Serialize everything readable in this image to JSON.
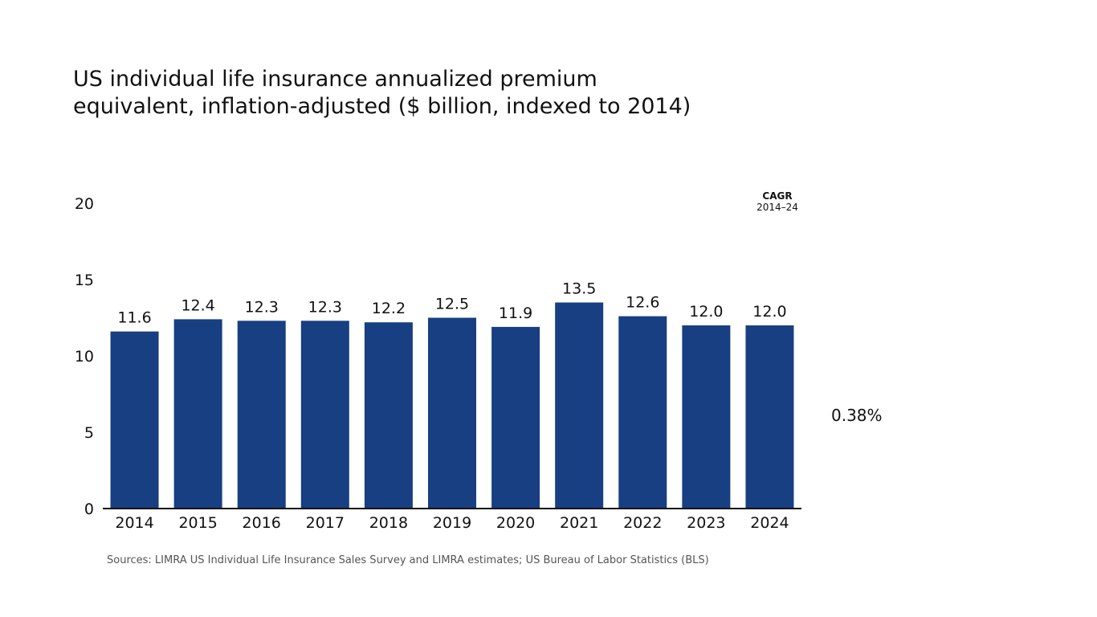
{
  "chart_data": {
    "type": "bar",
    "title_lines": [
      "US individual life insurance annualized premium",
      "equivalent, inflation-adjusted ($ billion, indexed to 2014)"
    ],
    "categories": [
      "2014",
      "2015",
      "2016",
      "2017",
      "2018",
      "2019",
      "2020",
      "2021",
      "2022",
      "2023",
      "2024"
    ],
    "values": [
      11.6,
      12.4,
      12.3,
      12.3,
      12.2,
      12.5,
      11.9,
      13.5,
      12.6,
      12.0,
      12.0
    ],
    "value_labels": [
      "11.6",
      "12.4",
      "12.3",
      "12.3",
      "12.2",
      "12.5",
      "11.9",
      "13.5",
      "12.6",
      "12.0",
      "12.0"
    ],
    "yticks": [
      0,
      5,
      10,
      15,
      20
    ],
    "ylim": [
      0,
      20
    ],
    "grid": false,
    "bar_color": "#173f82",
    "cagr": {
      "title": "CAGR",
      "range": "2014–24",
      "value": "0.38%"
    },
    "source": "Sources: LIMRA US Individual Life Insurance Sales Survey and LIMRA estimates; US Bureau of Labor Statistics (BLS)"
  }
}
